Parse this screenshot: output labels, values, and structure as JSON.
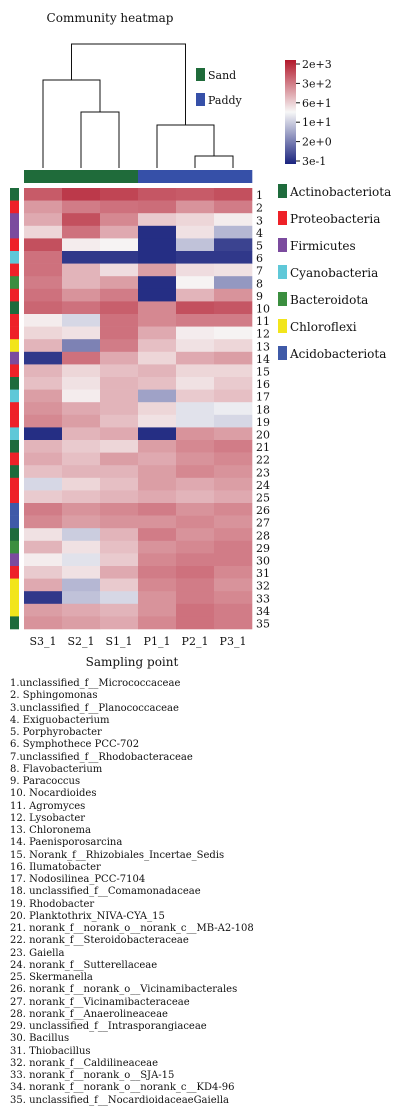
{
  "chart_data": {
    "type": "heatmap",
    "title": "Community heatmap",
    "xlabel": "Sampling point",
    "ylabel": "",
    "samples": [
      "S3_1",
      "S2_1",
      "S1_1",
      "P1_1",
      "P2_1",
      "P3_1"
    ],
    "sample_groups": [
      "Sand",
      "Sand",
      "Sand",
      "Paddy",
      "Paddy",
      "Paddy"
    ],
    "group_legend": [
      {
        "name": "Sand",
        "color": "#1f6b3a"
      },
      {
        "name": "Paddy",
        "color": "#3650a8"
      }
    ],
    "color_scale": {
      "labels": [
        "2e+3",
        "3e+2",
        "6e+1",
        "1e+1",
        "2e+0",
        "3e-1"
      ],
      "high_color": "#b2182b",
      "mid_color": "#f7f7f7",
      "low_color": "#1a237e"
    },
    "phylum_legend": [
      {
        "name": "Actinobacteriota",
        "color": "#1e6b3c"
      },
      {
        "name": "Proteobacteria",
        "color": "#ee2128"
      },
      {
        "name": "Firmicutes",
        "color": "#7b4b9e"
      },
      {
        "name": "Cyanobacteria",
        "color": "#5fc8d8"
      },
      {
        "name": "Bacteroidota",
        "color": "#3b8e3f"
      },
      {
        "name": "Chloroflexi",
        "color": "#f2e51b"
      },
      {
        "name": "Acidobacteriota",
        "color": "#3f5aa8"
      }
    ],
    "row_labels": [
      "1",
      "2",
      "3",
      "4",
      "5",
      "6",
      "7",
      "8",
      "9",
      "10",
      "11",
      "12",
      "13",
      "14",
      "15",
      "16",
      "17",
      "18",
      "19",
      "20",
      "21",
      "22",
      "23",
      "24",
      "25",
      "26",
      "27",
      "28",
      "29",
      "30",
      "31",
      "32",
      "33",
      "34",
      "35"
    ],
    "row_phylum": [
      0,
      1,
      2,
      2,
      1,
      3,
      1,
      4,
      1,
      0,
      1,
      1,
      5,
      2,
      1,
      0,
      3,
      1,
      1,
      3,
      0,
      1,
      0,
      1,
      1,
      6,
      6,
      0,
      4,
      2,
      1,
      5,
      5,
      5,
      0
    ],
    "values": [
      [
        0.7,
        0.85,
        0.8,
        0.72,
        0.7,
        0.75
      ],
      [
        0.42,
        0.55,
        0.6,
        0.62,
        0.45,
        0.55
      ],
      [
        0.35,
        0.75,
        0.5,
        0.2,
        0.15,
        0.05
      ],
      [
        0.15,
        0.6,
        0.35,
        -0.95,
        0.1,
        -0.3
      ],
      [
        0.75,
        0.05,
        0.02,
        -0.95,
        -0.25,
        -0.85
      ],
      [
        0.6,
        -0.9,
        -0.9,
        -0.95,
        -0.9,
        -0.9
      ],
      [
        0.6,
        0.3,
        0.12,
        0.4,
        0.12,
        0.1
      ],
      [
        0.55,
        0.3,
        0.4,
        -0.95,
        0.02,
        -0.45
      ],
      [
        0.6,
        0.45,
        0.55,
        -0.95,
        0.3,
        0.45
      ],
      [
        0.65,
        0.6,
        0.68,
        0.5,
        0.75,
        0.72
      ],
      [
        0.05,
        -0.15,
        0.6,
        0.5,
        0.55,
        0.55
      ],
      [
        0.15,
        0.1,
        0.6,
        0.35,
        0.05,
        0.02
      ],
      [
        0.3,
        -0.55,
        0.55,
        0.25,
        0.1,
        0.15
      ],
      [
        -0.9,
        0.6,
        0.35,
        0.15,
        0.35,
        0.4
      ],
      [
        0.3,
        0.15,
        0.25,
        0.3,
        0.15,
        0.15
      ],
      [
        0.25,
        0.1,
        0.3,
        0.25,
        0.1,
        0.2
      ],
      [
        0.4,
        0.05,
        0.3,
        -0.4,
        0.2,
        0.25
      ],
      [
        0.45,
        0.35,
        0.3,
        0.15,
        -0.1,
        -0.05
      ],
      [
        0.5,
        0.4,
        0.25,
        0.1,
        -0.1,
        -0.15
      ],
      [
        -0.95,
        0.3,
        0.35,
        -0.95,
        0.45,
        0.4
      ],
      [
        0.3,
        0.2,
        0.15,
        0.4,
        0.5,
        0.55
      ],
      [
        0.35,
        0.25,
        0.4,
        0.35,
        0.45,
        0.5
      ],
      [
        0.25,
        0.3,
        0.3,
        0.4,
        0.5,
        0.45
      ],
      [
        -0.15,
        0.15,
        0.25,
        0.4,
        0.35,
        0.4
      ],
      [
        0.2,
        0.25,
        0.3,
        0.35,
        0.3,
        0.35
      ],
      [
        0.55,
        0.45,
        0.5,
        0.55,
        0.45,
        0.5
      ],
      [
        0.5,
        0.4,
        0.45,
        0.45,
        0.5,
        0.45
      ],
      [
        0.1,
        -0.2,
        0.3,
        0.55,
        0.45,
        0.5
      ],
      [
        0.3,
        0.1,
        0.25,
        0.45,
        0.5,
        0.55
      ],
      [
        0.05,
        -0.1,
        0.2,
        0.5,
        0.55,
        0.55
      ],
      [
        0.2,
        0.1,
        0.35,
        0.55,
        0.6,
        0.5
      ],
      [
        0.35,
        -0.3,
        0.2,
        0.5,
        0.55,
        0.45
      ],
      [
        -0.9,
        -0.25,
        -0.15,
        0.45,
        0.55,
        0.5
      ],
      [
        0.4,
        0.35,
        0.3,
        0.45,
        0.6,
        0.55
      ],
      [
        0.45,
        0.4,
        0.35,
        0.5,
        0.6,
        0.55
      ]
    ]
  },
  "otu_list": [
    "1.unclassified_f__Micrococcaceae",
    "2. Sphingomonas",
    "3.unclassified_f__Planococcaceae",
    "4. Exiguobacterium",
    "5. Porphyrobacter",
    "6. Symphothece PCC-702",
    "7.unclassified_f__Rhodobacteraceae",
    "8. Flavobacterium",
    "9. Paracoccus",
    "10. Nocardioides",
    "11. Agromyces",
    "12. Lysobacter",
    "13. Chloronema",
    "14. Paenisporosarcina",
    "15. Norank_f__Rhizobiales_Incertae_Sedis",
    "16. Ilumatobacter",
    "17. Nodosilinea_PCC-7104",
    "18. unclassified_f__Comamonadaceae",
    "19. Rhodobacter",
    "20. Planktothrix_NIVA-CYA_15",
    "21. norank_f__norank_o__norank_c__MB-A2-108",
    "22. norank_f__Steroidobacteraceae",
    "23. Gaiella",
    "24. norank_f__Sutterellaceae",
    "25. Skermanella",
    "26. norank_f__norank_o__Vicinamibacterales",
    "27. norank_f__Vicinamibacteraceae",
    "28. norank_f__Anaerolineaceae",
    "29. unclassified_f__Intrasporangiaceae",
    "30. Bacillus",
    "31. Thiobacillus",
    "32. norank_f__Caldilineaceae",
    "33. norank_f__norank_o__SJA-15",
    "34. norank_f__norank_o__norank_c__KD4-96",
    "35. unclassified_f__NocardioidaceaeGaiella"
  ]
}
